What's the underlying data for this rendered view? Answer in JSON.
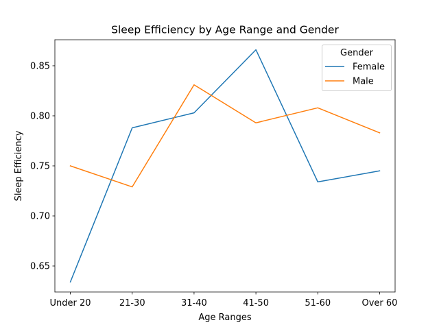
{
  "chart_data": {
    "type": "line",
    "title": "Sleep Efficiency by Age Range and Gender",
    "xlabel": "Age Ranges",
    "ylabel": "Sleep Efficiency",
    "categories": [
      "Under 20",
      "21-30",
      "31-40",
      "41-50",
      "51-60",
      "Over 60"
    ],
    "series": [
      {
        "name": "Female",
        "color": "#1f77b4",
        "values": [
          0.634,
          0.788,
          0.803,
          0.866,
          0.734,
          0.745
        ]
      },
      {
        "name": "Male",
        "color": "#ff7f0e",
        "values": [
          0.75,
          0.729,
          0.831,
          0.793,
          0.808,
          0.783
        ]
      }
    ],
    "ylim": [
      0.624,
      0.876
    ],
    "yticks": [
      0.65,
      0.7,
      0.75,
      0.8,
      0.85
    ],
    "ytick_labels": [
      "0.65",
      "0.70",
      "0.75",
      "0.80",
      "0.85"
    ],
    "grid": false,
    "legend": {
      "title": "Gender",
      "placement": "upper right"
    }
  }
}
